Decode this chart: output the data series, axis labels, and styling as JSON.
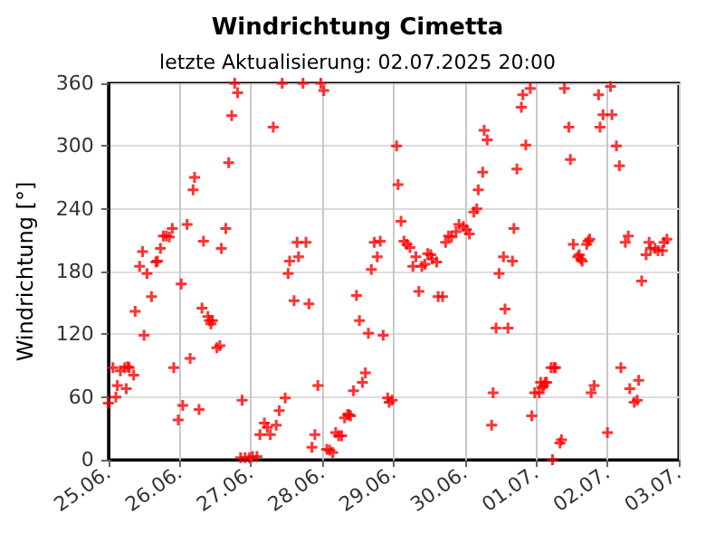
{
  "chart_data": {
    "type": "scatter",
    "title": "Windrichtung Cimetta",
    "subtitle": "letzte Aktualisierung: 02.07.2025 20:00",
    "ylabel": "Windrichtung [°]",
    "x": [
      "2025-06-25T00:00",
      "2025-06-25T01:30",
      "2025-06-25T02:30",
      "2025-06-25T03:00",
      "2025-06-25T04:00",
      "2025-06-25T05:30",
      "2025-06-25T06:00",
      "2025-06-25T06:30",
      "2025-06-25T07:00",
      "2025-06-25T08:30",
      "2025-06-25T09:00",
      "2025-06-25T10:30",
      "2025-06-25T11:30",
      "2025-06-25T12:00",
      "2025-06-25T13:00",
      "2025-06-25T14:30",
      "2025-06-25T16:00",
      "2025-06-25T16:30",
      "2025-06-25T17:30",
      "2025-06-25T18:30",
      "2025-06-25T19:30",
      "2025-06-25T20:30",
      "2025-06-25T21:30",
      "2025-06-25T22:00",
      "2025-06-25T23:30",
      "2025-06-26T00:30",
      "2025-06-26T01:00",
      "2025-06-26T02:30",
      "2025-06-26T03:30",
      "2025-06-26T04:30",
      "2025-06-26T05:00",
      "2025-06-26T06:30",
      "2025-06-26T07:30",
      "2025-06-26T08:00",
      "2025-06-26T09:30",
      "2025-06-26T10:00",
      "2025-06-26T10:30",
      "2025-06-26T11:00",
      "2025-06-26T12:30",
      "2025-06-26T13:30",
      "2025-06-26T14:00",
      "2025-06-26T15:30",
      "2025-06-26T16:30",
      "2025-06-26T17:30",
      "2025-06-26T18:30",
      "2025-06-26T19:30",
      "2025-06-26T20:30",
      "2025-06-26T21:00",
      "2025-06-26T22:00",
      "2025-06-26T23:30",
      "2025-06-27T00:30",
      "2025-06-27T02:00",
      "2025-06-27T03:00",
      "2025-06-27T04:30",
      "2025-06-27T05:30",
      "2025-06-27T06:30",
      "2025-06-27T07:30",
      "2025-06-27T08:30",
      "2025-06-27T09:30",
      "2025-06-27T10:30",
      "2025-06-27T11:30",
      "2025-06-27T12:30",
      "2025-06-27T13:00",
      "2025-06-27T14:30",
      "2025-06-27T15:30",
      "2025-06-27T16:00",
      "2025-06-27T17:30",
      "2025-06-27T18:30",
      "2025-06-27T19:30",
      "2025-06-27T20:30",
      "2025-06-27T21:30",
      "2025-06-27T22:30",
      "2025-06-27T23:30",
      "2025-06-28T00:30",
      "2025-06-28T01:30",
      "2025-06-28T02:30",
      "2025-06-28T03:30",
      "2025-06-28T04:30",
      "2025-06-28T05:30",
      "2025-06-28T06:30",
      "2025-06-28T07:30",
      "2025-06-28T08:30",
      "2025-06-28T09:00",
      "2025-06-28T09:30",
      "2025-06-28T10:30",
      "2025-06-28T11:30",
      "2025-06-28T12:30",
      "2025-06-28T13:30",
      "2025-06-28T14:30",
      "2025-06-28T15:30",
      "2025-06-28T16:30",
      "2025-06-28T17:30",
      "2025-06-28T18:30",
      "2025-06-28T19:30",
      "2025-06-28T20:30",
      "2025-06-28T22:00",
      "2025-06-28T22:30",
      "2025-06-28T23:30",
      "2025-06-29T01:00",
      "2025-06-29T01:30",
      "2025-06-29T02:30",
      "2025-06-29T03:30",
      "2025-06-29T04:30",
      "2025-06-29T05:30",
      "2025-06-29T06:30",
      "2025-06-29T07:30",
      "2025-06-29T08:30",
      "2025-06-29T09:30",
      "2025-06-29T10:30",
      "2025-06-29T11:30",
      "2025-06-29T12:30",
      "2025-06-29T13:00",
      "2025-06-29T14:30",
      "2025-06-29T15:00",
      "2025-06-29T16:30",
      "2025-06-29T17:30",
      "2025-06-29T18:30",
      "2025-06-29T19:30",
      "2025-06-29T21:00",
      "2025-06-29T22:00",
      "2025-06-29T23:30",
      "2025-06-30T00:30",
      "2025-06-30T01:30",
      "2025-06-30T03:00",
      "2025-06-30T04:00",
      "2025-06-30T04:30",
      "2025-06-30T06:00",
      "2025-06-30T06:30",
      "2025-06-30T07:30",
      "2025-06-30T09:00",
      "2025-06-30T09:30",
      "2025-06-30T10:30",
      "2025-06-30T11:30",
      "2025-06-30T13:00",
      "2025-06-30T13:30",
      "2025-06-30T14:30",
      "2025-06-30T16:00",
      "2025-06-30T16:30",
      "2025-06-30T17:30",
      "2025-06-30T19:00",
      "2025-06-30T19:30",
      "2025-06-30T20:30",
      "2025-06-30T22:00",
      "2025-06-30T22:30",
      "2025-06-30T23:30",
      "2025-07-01T01:00",
      "2025-07-01T01:30",
      "2025-07-01T02:00",
      "2025-07-01T02:30",
      "2025-07-01T03:00",
      "2025-07-01T03:30",
      "2025-07-01T05:00",
      "2025-07-01T05:30",
      "2025-07-01T06:00",
      "2025-07-01T06:30",
      "2025-07-01T08:00",
      "2025-07-01T08:30",
      "2025-07-01T09:30",
      "2025-07-01T11:00",
      "2025-07-01T11:30",
      "2025-07-01T12:30",
      "2025-07-01T14:00",
      "2025-07-01T14:30",
      "2025-07-01T15:00",
      "2025-07-01T15:30",
      "2025-07-01T17:00",
      "2025-07-01T17:30",
      "2025-07-01T18:00",
      "2025-07-01T18:30",
      "2025-07-01T19:30",
      "2025-07-01T21:00",
      "2025-07-01T21:30",
      "2025-07-01T22:30",
      "2025-07-02T00:00",
      "2025-07-02T01:00",
      "2025-07-02T01:30",
      "2025-07-02T03:00",
      "2025-07-02T04:00",
      "2025-07-02T04:30",
      "2025-07-02T06:00",
      "2025-07-02T07:00",
      "2025-07-02T07:30",
      "2025-07-02T09:00",
      "2025-07-02T10:00",
      "2025-07-02T10:30",
      "2025-07-02T11:30",
      "2025-07-02T13:00",
      "2025-07-02T14:00",
      "2025-07-02T14:30",
      "2025-07-02T16:00",
      "2025-07-02T17:00",
      "2025-07-02T18:30",
      "2025-07-02T19:00",
      "2025-07-02T20:00"
    ],
    "values": [
      54,
      88,
      60,
      71,
      85,
      88,
      68,
      89,
      88,
      81,
      142,
      185,
      199,
      119,
      178,
      156,
      189,
      190,
      202,
      214,
      214,
      213,
      221,
      88,
      38,
      168,
      52,
      225,
      97,
      258,
      270,
      48,
      145,
      209,
      137,
      133,
      130,
      133,
      107,
      109,
      202,
      221,
      284,
      329,
      360,
      351,
      2,
      57,
      2,
      2,
      3,
      3,
      24,
      35,
      31,
      24,
      318,
      33,
      47,
      360,
      59,
      178,
      190,
      152,
      208,
      194,
      360,
      208,
      149,
      12,
      24,
      71,
      360,
      353,
      10,
      9,
      7,
      26,
      23,
      23,
      40,
      43,
      43,
      42,
      66,
      157,
      133,
      74,
      83,
      121,
      182,
      208,
      194,
      209,
      119,
      59,
      55,
      57,
      300,
      263,
      228,
      209,
      206,
      203,
      185,
      194,
      161,
      185,
      187,
      197,
      196,
      192,
      189,
      156,
      156,
      208,
      214,
      213,
      218,
      225,
      223,
      220,
      216,
      237,
      240,
      258,
      275,
      315,
      306,
      33,
      64,
      126,
      178,
      194,
      144,
      126,
      190,
      221,
      278,
      337,
      349,
      301,
      355,
      42,
      64,
      64,
      74,
      69,
      71,
      74,
      74,
      88,
      0,
      88,
      88,
      16,
      19,
      355,
      318,
      287,
      206,
      194,
      196,
      192,
      190,
      206,
      209,
      211,
      64,
      71,
      349,
      318,
      330,
      26,
      357,
      330,
      300,
      281,
      88,
      208,
      214,
      68,
      55,
      57,
      76,
      171,
      196,
      208,
      202,
      202,
      200,
      200,
      208,
      211
    ],
    "color": "#ff0000",
    "marker": "cross",
    "xlim": [
      "2025-06-25T00:00",
      "2025-07-03T00:00"
    ],
    "xticks": [
      {
        "value": "2025-06-25T00:00",
        "label": "25.06."
      },
      {
        "value": "2025-06-26T00:00",
        "label": "26.06."
      },
      {
        "value": "2025-06-27T00:00",
        "label": "27.06."
      },
      {
        "value": "2025-06-28T00:00",
        "label": "28.06."
      },
      {
        "value": "2025-06-29T00:00",
        "label": "29.06."
      },
      {
        "value": "2025-06-30T00:00",
        "label": "30.06."
      },
      {
        "value": "2025-07-01T00:00",
        "label": "01.07."
      },
      {
        "value": "2025-07-02T00:00",
        "label": "02.07."
      },
      {
        "value": "2025-07-03T00:00",
        "label": "03.07."
      }
    ],
    "ylim": [
      0,
      360
    ],
    "yticks": [
      0,
      60,
      120,
      180,
      240,
      300,
      360
    ],
    "grid": true
  }
}
